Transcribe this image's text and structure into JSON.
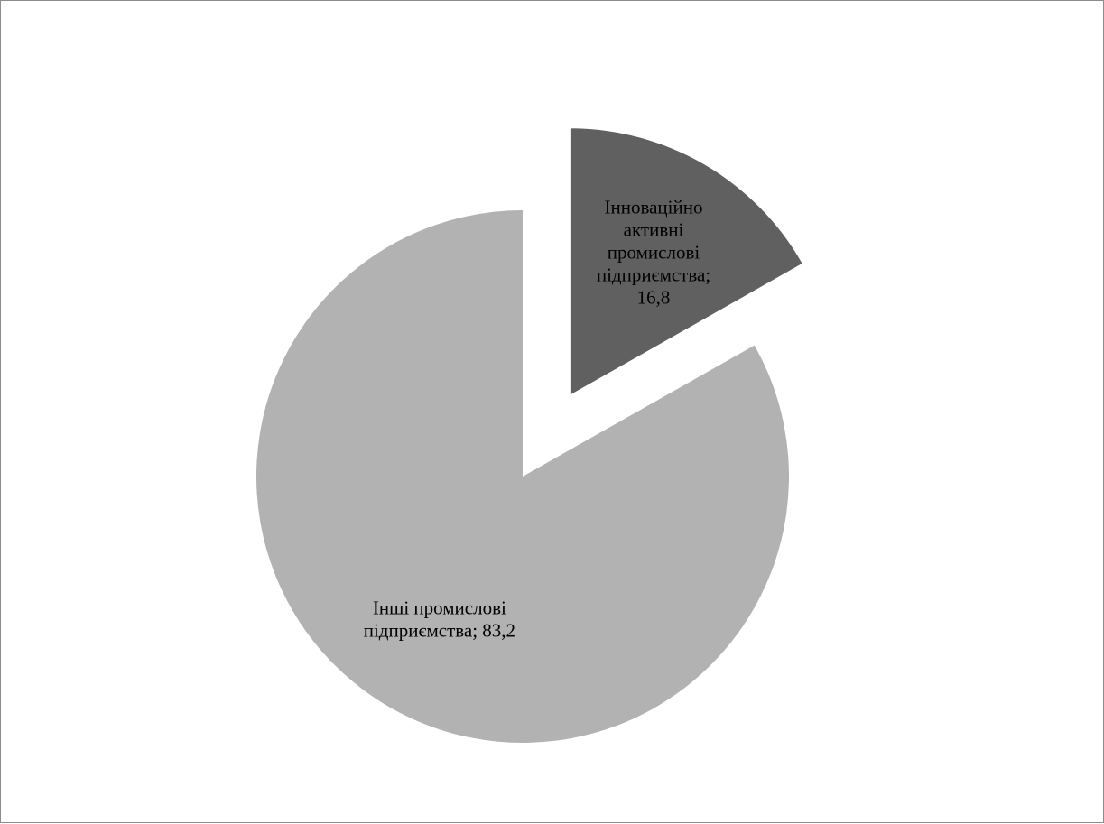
{
  "chart_data": {
    "type": "pie",
    "title": "",
    "legend": false,
    "slices": [
      {
        "name": "Інноваційно активні промислові підприємства",
        "value": 16.8,
        "value_label": "16,8",
        "color": "#606060",
        "exploded": true,
        "label_lines": [
          "Інноваційно",
          "активні",
          "промислові",
          "підприємства;",
          "16,8"
        ]
      },
      {
        "name": "Інші промислові підприємства",
        "value": 83.2,
        "value_label": "83,2",
        "color": "#b2b2b2",
        "exploded": false,
        "label_lines": [
          "Інші промислові",
          "підприємства; 83,2"
        ]
      }
    ]
  }
}
